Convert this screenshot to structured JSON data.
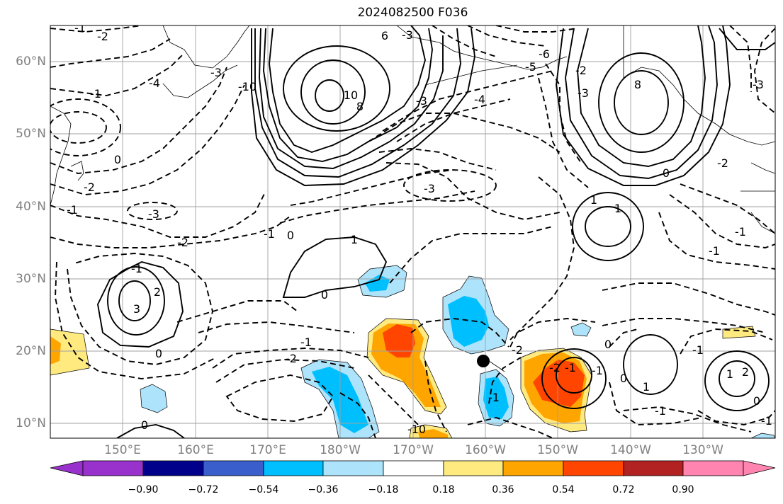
{
  "title": "2024082500 F036",
  "map": {
    "lat_labels": [
      "60°N",
      "50°N",
      "40°N",
      "30°N",
      "20°N",
      "10°N"
    ],
    "lon_labels": [
      "150°E",
      "160°E",
      "170°E",
      "180°W",
      "170°W",
      "160°W",
      "150°W",
      "140°W",
      "130°W"
    ],
    "extent": {
      "lon": [
        140,
        240
      ],
      "lat": [
        8,
        65
      ]
    },
    "contour_labels": [
      "-2",
      "-1",
      "-4",
      "-3",
      "-1",
      "6",
      "-3",
      "-10",
      "10",
      "8",
      "-3",
      "-4",
      "-5",
      "-6",
      "-3",
      "-2",
      "0",
      "8",
      "-3",
      "-2",
      "-1",
      "-3",
      "-2",
      "-1",
      "-3",
      "0",
      "1",
      "1",
      "-1",
      "0",
      "-2",
      "-1",
      "0",
      "1",
      "2",
      "3",
      "-1",
      "-1",
      "-2",
      "0",
      "-1",
      "-2",
      "-1",
      "0",
      "-2",
      "-1",
      "0",
      "1",
      "0",
      "1",
      "2",
      "-1",
      "-1",
      "-1",
      "0",
      "-1",
      "0"
    ],
    "fill_colors": {
      "light_blue": "#ade3fb",
      "cyan": "#00bfff",
      "yellow": "#ffea80",
      "orange": "#ffa500",
      "red_orange": "#ff4500"
    },
    "marker": "black-dot"
  },
  "colorbar": {
    "ticks": [
      "−0.90",
      "−0.72",
      "−0.54",
      "−0.36",
      "−0.18",
      "0.18",
      "0.36",
      "0.54",
      "0.72",
      "0.90"
    ],
    "colors": [
      "#9932cc",
      "#00008b",
      "#3a5fcd",
      "#00bfff",
      "#ade3fb",
      "#ffffff",
      "#ffea80",
      "#ffa500",
      "#ff4500",
      "#b22222",
      "#ff85b0"
    ]
  }
}
